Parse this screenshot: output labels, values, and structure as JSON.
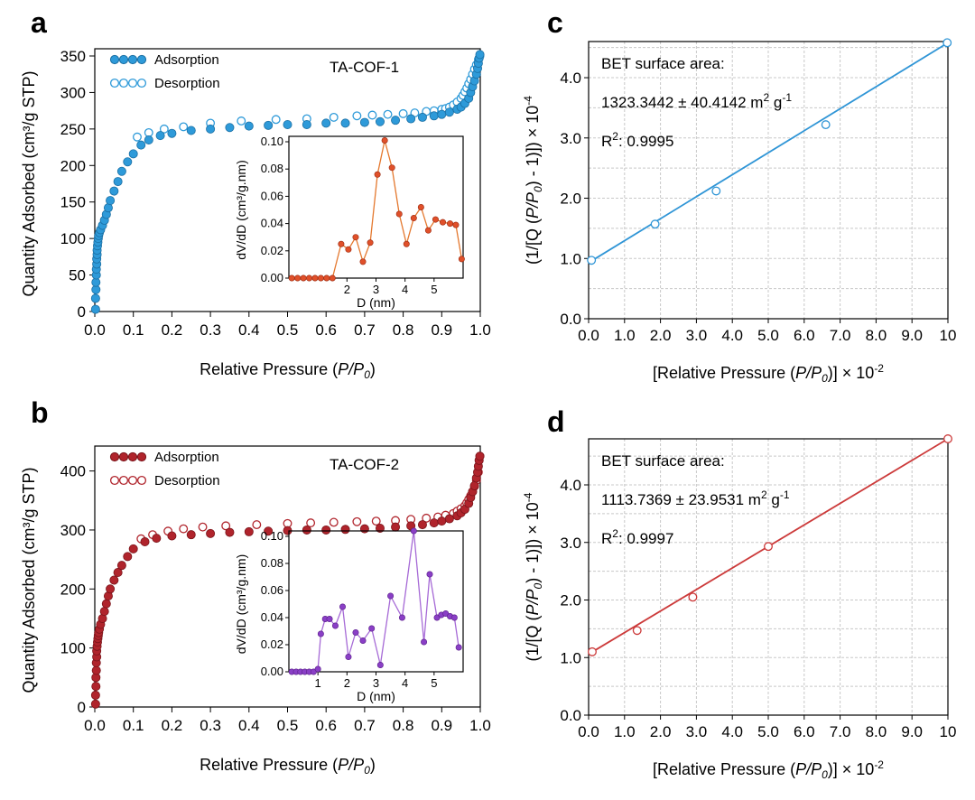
{
  "panels": {
    "a": "a",
    "b": "b",
    "c": "c",
    "d": "d"
  },
  "colors": {
    "blue": "#2e9ad9",
    "blue_dark": "#1b6fa3",
    "red": "#b0242c",
    "red_dark": "#7a141a",
    "orange": "#e0502a",
    "orange_line": "#e4782e",
    "purple": "#8a3fc6",
    "purple_line": "#a66ad6",
    "blue_line": "#2f95d6",
    "red_line": "#cc3a3a"
  },
  "chart_data": [
    {
      "id": "a",
      "type": "scatter",
      "sample_label": "TA-COF-1",
      "xlabel_prefix": "Relative Pressure (",
      "xlabel_italic": "P/P",
      "xlabel_sub": "0",
      "xlabel_suffix": ")",
      "ylabel": "Quantity Adsorbed (cm³/g STP)",
      "xlim": [
        0,
        1.0
      ],
      "ylim": [
        0,
        350
      ],
      "x_ticks": [
        "0.0",
        "0.1",
        "0.2",
        "0.3",
        "0.4",
        "0.5",
        "0.6",
        "0.7",
        "0.8",
        "0.9",
        "1.0"
      ],
      "y_ticks": [
        "0",
        "50",
        "100",
        "150",
        "200",
        "250",
        "300",
        "350"
      ],
      "legend": [
        "Adsorption",
        "Desorption"
      ],
      "series": [
        {
          "name": "Adsorption",
          "x": [
            0.002,
            0.002,
            0.003,
            0.003,
            0.004,
            0.004,
            0.005,
            0.005,
            0.006,
            0.006,
            0.007,
            0.008,
            0.009,
            0.01,
            0.012,
            0.015,
            0.02,
            0.025,
            0.03,
            0.035,
            0.04,
            0.05,
            0.06,
            0.07,
            0.085,
            0.1,
            0.12,
            0.14,
            0.17,
            0.2,
            0.25,
            0.3,
            0.35,
            0.4,
            0.45,
            0.5,
            0.55,
            0.6,
            0.65,
            0.7,
            0.74,
            0.78,
            0.82,
            0.85,
            0.88,
            0.9,
            0.92,
            0.94,
            0.95,
            0.96,
            0.97,
            0.975,
            0.98,
            0.985,
            0.99,
            0.993,
            0.995,
            0.997,
            0.999
          ],
          "y": [
            3,
            18,
            30,
            40,
            50,
            58,
            65,
            72,
            78,
            84,
            90,
            95,
            100,
            104,
            108,
            112,
            118,
            125,
            133,
            142,
            152,
            165,
            178,
            192,
            205,
            216,
            228,
            235,
            241,
            244,
            248,
            250,
            252,
            254,
            255,
            256,
            256,
            258,
            258,
            259,
            260,
            262,
            264,
            266,
            268,
            270,
            273,
            277,
            280,
            285,
            292,
            300,
            308,
            316,
            325,
            333,
            340,
            347,
            352
          ]
        },
        {
          "name": "Desorption",
          "x": [
            0.11,
            0.14,
            0.18,
            0.23,
            0.3,
            0.38,
            0.47,
            0.55,
            0.62,
            0.68,
            0.72,
            0.76,
            0.8,
            0.83,
            0.86,
            0.88,
            0.9,
            0.91,
            0.92,
            0.93,
            0.94,
            0.95,
            0.955,
            0.96,
            0.965,
            0.97,
            0.975,
            0.98,
            0.985,
            0.99,
            0.995,
            0.999
          ],
          "y": [
            239,
            245,
            250,
            253,
            258,
            261,
            263,
            264,
            266,
            268,
            269,
            270,
            271,
            272,
            274,
            275,
            277,
            278,
            280,
            283,
            287,
            292,
            296,
            301,
            306,
            312,
            318,
            325,
            332,
            338,
            345,
            350
          ]
        }
      ],
      "inset": {
        "type": "line",
        "xlabel": "D (nm)",
        "ylabel": "dV/dD (cm³/g.nm)",
        "xlim": [
          0,
          6
        ],
        "ylim": [
          0,
          0.1
        ],
        "x_ticks": [
          "2",
          "3",
          "4",
          "5"
        ],
        "y_ticks": [
          "0.00",
          "0.02",
          "0.04",
          "0.06",
          "0.08",
          "0.10"
        ],
        "x": [
          0.1,
          0.3,
          0.5,
          0.7,
          0.9,
          1.1,
          1.3,
          1.5,
          1.8,
          2.05,
          2.3,
          2.55,
          2.8,
          3.05,
          3.3,
          3.55,
          3.8,
          4.05,
          4.3,
          4.55,
          4.8,
          5.05,
          5.3,
          5.55,
          5.75,
          5.95
        ],
        "y": [
          0.0,
          0.0,
          0.0,
          0.0,
          0.0,
          0.0,
          0.0,
          0.0,
          0.025,
          0.021,
          0.03,
          0.012,
          0.026,
          0.076,
          0.101,
          0.081,
          0.047,
          0.025,
          0.044,
          0.052,
          0.035,
          0.043,
          0.041,
          0.04,
          0.039,
          0.014
        ]
      }
    },
    {
      "id": "b",
      "type": "scatter",
      "sample_label": "TA-COF-2",
      "xlabel_prefix": "Relative Pressure (",
      "xlabel_italic": "P/P",
      "xlabel_sub": "0",
      "xlabel_suffix": ")",
      "ylabel": "Quantity Adsorbed (cm³/g STP)",
      "xlim": [
        0,
        1.0
      ],
      "ylim": [
        0,
        430
      ],
      "x_ticks": [
        "0.0",
        "0.1",
        "0.2",
        "0.3",
        "0.4",
        "0.5",
        "0.6",
        "0.7",
        "0.8",
        "0.9",
        "1.0"
      ],
      "y_ticks": [
        "0",
        "100",
        "200",
        "300",
        "400"
      ],
      "legend": [
        "Adsorption",
        "Desorption"
      ],
      "series": [
        {
          "name": "Adsorption",
          "x": [
            0.002,
            0.002,
            0.003,
            0.003,
            0.004,
            0.004,
            0.005,
            0.005,
            0.006,
            0.007,
            0.008,
            0.009,
            0.01,
            0.012,
            0.015,
            0.02,
            0.025,
            0.03,
            0.035,
            0.04,
            0.05,
            0.06,
            0.07,
            0.085,
            0.1,
            0.13,
            0.16,
            0.2,
            0.25,
            0.3,
            0.35,
            0.4,
            0.45,
            0.5,
            0.55,
            0.6,
            0.65,
            0.7,
            0.74,
            0.78,
            0.82,
            0.85,
            0.88,
            0.9,
            0.92,
            0.94,
            0.95,
            0.96,
            0.97,
            0.975,
            0.98,
            0.985,
            0.99,
            0.993,
            0.995,
            0.997,
            0.999
          ],
          "y": [
            5,
            20,
            35,
            50,
            62,
            75,
            85,
            95,
            103,
            110,
            116,
            121,
            126,
            132,
            140,
            150,
            162,
            175,
            188,
            200,
            215,
            228,
            240,
            255,
            268,
            280,
            286,
            290,
            292,
            294,
            296,
            297,
            298,
            299,
            300,
            300,
            301,
            302,
            303,
            305,
            307,
            309,
            312,
            315,
            319,
            324,
            329,
            335,
            345,
            355,
            365,
            375,
            388,
            398,
            408,
            418,
            425
          ]
        },
        {
          "name": "Desorption",
          "x": [
            0.12,
            0.15,
            0.19,
            0.23,
            0.28,
            0.34,
            0.42,
            0.5,
            0.56,
            0.62,
            0.68,
            0.73,
            0.78,
            0.82,
            0.86,
            0.89,
            0.91,
            0.93,
            0.94,
            0.95,
            0.96,
            0.965,
            0.97,
            0.975,
            0.98,
            0.985,
            0.99,
            0.995,
            0.999
          ],
          "y": [
            285,
            292,
            298,
            302,
            305,
            307,
            309,
            311,
            312,
            313,
            314,
            315,
            316,
            318,
            320,
            322,
            325,
            328,
            332,
            336,
            341,
            346,
            352,
            358,
            365,
            374,
            384,
            398,
            425
          ]
        }
      ],
      "inset": {
        "type": "line",
        "xlabel": "D (nm)",
        "ylabel": "dV/dD (cm³/g.nm)",
        "xlim": [
          0,
          6
        ],
        "ylim": [
          0,
          0.1
        ],
        "x_ticks": [
          "1",
          "2",
          "3",
          "4",
          "5"
        ],
        "y_ticks": [
          "0.00",
          "0.02",
          "0.04",
          "0.06",
          "0.08",
          "0.10"
        ],
        "x": [
          0.1,
          0.25,
          0.4,
          0.55,
          0.7,
          0.85,
          1.0,
          1.1,
          1.25,
          1.4,
          1.6,
          1.85,
          2.05,
          2.3,
          2.55,
          2.85,
          3.15,
          3.5,
          3.9,
          4.3,
          4.65,
          4.85,
          5.1,
          5.25,
          5.4,
          5.55,
          5.7,
          5.85
        ],
        "y": [
          0.0,
          0.0,
          0.0,
          0.0,
          0.0,
          0.0,
          0.002,
          0.028,
          0.039,
          0.039,
          0.034,
          0.048,
          0.011,
          0.029,
          0.023,
          0.032,
          0.005,
          0.056,
          0.04,
          0.104,
          0.022,
          0.072,
          0.04,
          0.042,
          0.043,
          0.041,
          0.04,
          0.018
        ]
      }
    },
    {
      "id": "c",
      "type": "scatter",
      "xlabel_prefix": "[Relative Pressure (",
      "xlabel_italic": "P/P",
      "xlabel_sub": "0",
      "xlabel_suffix": ")] × 10",
      "xlabel_sup": "-2",
      "ylabel_prefix": "(1/[Q (",
      "ylabel_italic": "P/P",
      "ylabel_sub": "0",
      "ylabel_suffix": ") - 1)]) × 10",
      "ylabel_sup": "-4",
      "xlim": [
        0,
        10
      ],
      "ylim": [
        0,
        4.6
      ],
      "x_ticks": [
        "0.0",
        "1.0",
        "2.0",
        "3.0",
        "4.0",
        "5.0",
        "6.0",
        "7.0",
        "8.0",
        "9.0",
        "10"
      ],
      "y_ticks": [
        "0.0",
        "1.0",
        "2.0",
        "3.0",
        "4.0"
      ],
      "annotation_title": "BET surface area:",
      "annotation_value": "1323.3442 ± 40.4142 m",
      "annotation_unit_sup": "2",
      "annotation_unit2": " g",
      "annotation_unit2_sup": "-1",
      "r2_label": "R",
      "r2_sup": "2",
      "r2_value": ": 0.9995",
      "x": [
        0.08,
        1.85,
        3.55,
        6.6,
        9.98
      ],
      "y": [
        0.97,
        1.57,
        2.12,
        3.22,
        4.58
      ],
      "fit": {
        "x": [
          0.0,
          10.0
        ],
        "y": [
          0.93,
          4.58
        ]
      }
    },
    {
      "id": "d",
      "type": "scatter",
      "xlabel_prefix": "[Relative Pressure (",
      "xlabel_italic": "P/P",
      "xlabel_sub": "0",
      "xlabel_suffix": ")] × 10",
      "xlabel_sup": "-2",
      "ylabel_prefix": "(1/[Q (",
      "ylabel_italic": "P/P",
      "ylabel_sub": "0",
      "ylabel_suffix": ") - 1)]) × 10",
      "ylabel_sup": "-4",
      "xlim": [
        0,
        10
      ],
      "ylim": [
        0,
        4.8
      ],
      "x_ticks": [
        "0.0",
        "1.0",
        "2.0",
        "3.0",
        "4.0",
        "5.0",
        "6.0",
        "7.0",
        "8.0",
        "9.0",
        "10"
      ],
      "y_ticks": [
        "0.0",
        "1.0",
        "2.0",
        "3.0",
        "4.0"
      ],
      "annotation_title": "BET surface area:",
      "annotation_value": "1113.7369 ± 23.9531 m",
      "annotation_unit_sup": "2",
      "annotation_unit2": " g",
      "annotation_unit2_sup": "-1",
      "r2_label": "R",
      "r2_sup": "2",
      "r2_value": ": 0.9997",
      "x": [
        0.1,
        1.35,
        2.9,
        5.0,
        10.0
      ],
      "y": [
        1.1,
        1.47,
        2.05,
        2.93,
        4.8
      ],
      "fit": {
        "x": [
          0.0,
          10.0
        ],
        "y": [
          1.06,
          4.8
        ]
      }
    }
  ]
}
